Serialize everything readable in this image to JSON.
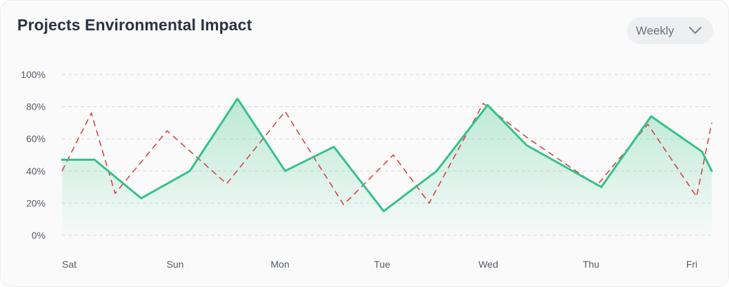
{
  "header": {
    "title": "Projects Environmental Impact",
    "dropdown": {
      "selected": "Weekly",
      "icon": "chevron-down-icon"
    }
  },
  "colors": {
    "primary_line": "#34c28a",
    "secondary_line": "#d64545",
    "grid": "#d9dbe0",
    "tick_text": "#555b66"
  },
  "chart_data": {
    "type": "area",
    "x_tick_labels": [
      "Sat",
      "Sun",
      "Mon",
      "Tue",
      "Wed",
      "Thu",
      "Fri"
    ],
    "y_tick_labels": [
      "0%",
      "20%",
      "40%",
      "60%",
      "80%",
      "100%"
    ],
    "ylim": [
      0,
      100
    ],
    "xlim": [
      0,
      6
    ],
    "grid": true,
    "series": [
      {
        "style": "solid-area",
        "x": [
          0,
          0.3,
          0.73,
          1.18,
          1.62,
          2.06,
          2.51,
          2.97,
          3.46,
          3.93,
          4.29,
          4.98,
          5.44,
          5.91,
          6.0
        ],
        "y": [
          47,
          47,
          23,
          40,
          85,
          40,
          55,
          15,
          40,
          81,
          56,
          30,
          74,
          52,
          40
        ]
      },
      {
        "style": "dashed",
        "x": [
          0,
          0.27,
          0.49,
          0.97,
          1.52,
          2.06,
          2.6,
          3.06,
          3.39,
          3.89,
          4.29,
          4.94,
          5.41,
          5.86,
          6.0
        ],
        "y": [
          40,
          76,
          26,
          65,
          32,
          77,
          19,
          50,
          20,
          82,
          61,
          31,
          69,
          24,
          70
        ]
      }
    ]
  }
}
